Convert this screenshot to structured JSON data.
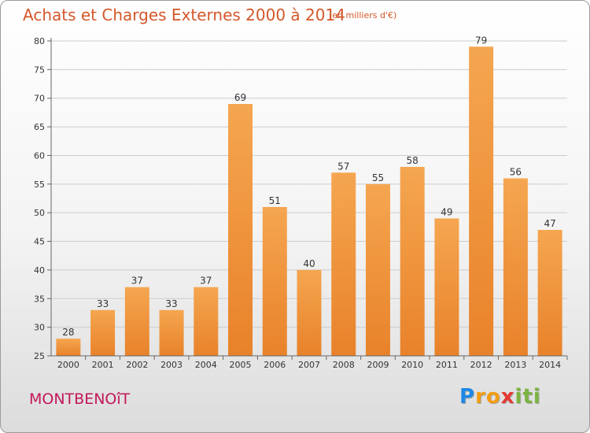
{
  "page": {
    "title": "Achats et Charges Externes 2000 à 2014",
    "subtitle": "(en milliers d'€)",
    "town": "MONTBENOîT",
    "logo": {
      "letters": [
        "P",
        "r",
        "o",
        "x",
        "i",
        "t",
        "i"
      ],
      "colors": [
        "#1e88e5",
        "#f39c12",
        "#f39c12",
        "#e53935",
        "#7cb342",
        "#7cb342",
        "#7cb342"
      ]
    }
  },
  "chart_data": {
    "type": "bar",
    "title": "Achats et Charges Externes 2000 à 2014",
    "subtitle": "(en milliers d'€)",
    "categories": [
      "2000",
      "2001",
      "2002",
      "2003",
      "2004",
      "2005",
      "2006",
      "2007",
      "2008",
      "2009",
      "2010",
      "2011",
      "2012",
      "2013",
      "2014"
    ],
    "values": [
      28,
      33,
      37,
      33,
      37,
      69,
      51,
      40,
      57,
      55,
      58,
      49,
      79,
      56,
      47
    ],
    "ylim": [
      25,
      80
    ],
    "yticks": [
      25,
      30,
      35,
      40,
      45,
      50,
      55,
      60,
      65,
      70,
      75,
      80
    ],
    "grid": true,
    "bar_color": "#e8822a",
    "bar_color_light": "#f5a650",
    "grid_color": "#cccccc"
  }
}
